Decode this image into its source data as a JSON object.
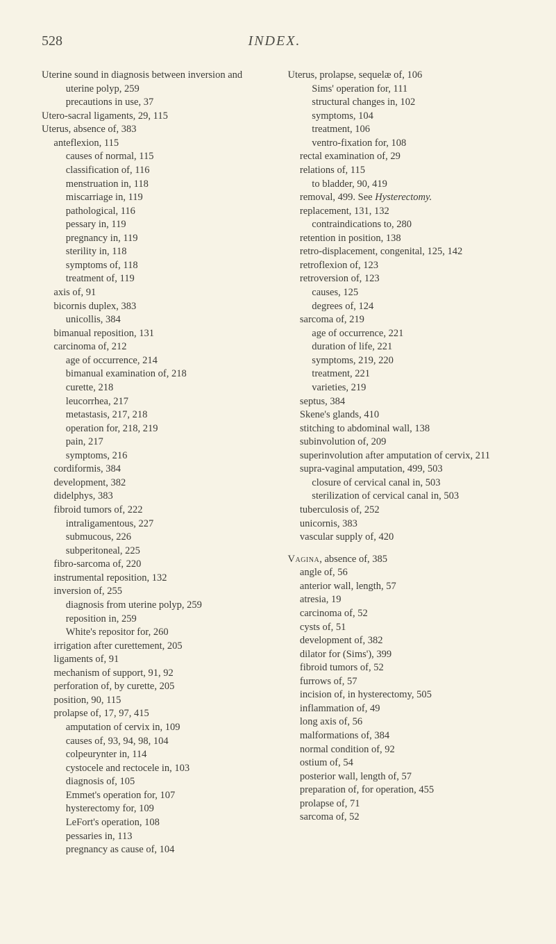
{
  "header": {
    "page_number": "528",
    "title": "INDEX."
  },
  "left_column": [
    {
      "d": 0,
      "t": "Uterine sound in diagnosis between inversion and uterine polyp, 259"
    },
    {
      "d": 2,
      "t": "precautions in use, 37"
    },
    {
      "d": 0,
      "t": "Utero-sacral ligaments, 29, 115"
    },
    {
      "d": 0,
      "t": "Uterus, absence of, 383"
    },
    {
      "d": 1,
      "t": "anteflexion, 115"
    },
    {
      "d": 2,
      "t": "causes of normal, 115"
    },
    {
      "d": 2,
      "t": "classification of, 116"
    },
    {
      "d": 2,
      "t": "menstruation in, 118"
    },
    {
      "d": 2,
      "t": "miscarriage in, 119"
    },
    {
      "d": 2,
      "t": "pathological, 116"
    },
    {
      "d": 2,
      "t": "pessary in, 119"
    },
    {
      "d": 2,
      "t": "pregnancy in, 119"
    },
    {
      "d": 2,
      "t": "sterility in, 118"
    },
    {
      "d": 2,
      "t": "symptoms of, 118"
    },
    {
      "d": 2,
      "t": "treatment of, 119"
    },
    {
      "d": 1,
      "t": "axis of, 91"
    },
    {
      "d": 1,
      "t": "bicornis duplex, 383"
    },
    {
      "d": 2,
      "t": "unicollis, 384"
    },
    {
      "d": 1,
      "t": "bimanual reposition, 131"
    },
    {
      "d": 1,
      "t": "carcinoma of, 212"
    },
    {
      "d": 2,
      "t": "age of occurrence, 214"
    },
    {
      "d": 2,
      "t": "bimanual examination of, 218"
    },
    {
      "d": 2,
      "t": "curette, 218"
    },
    {
      "d": 2,
      "t": "leucorrhea, 217"
    },
    {
      "d": 2,
      "t": "metastasis, 217, 218"
    },
    {
      "d": 2,
      "t": "operation for, 218, 219"
    },
    {
      "d": 2,
      "t": "pain, 217"
    },
    {
      "d": 2,
      "t": "symptoms, 216"
    },
    {
      "d": 1,
      "t": "cordiformis, 384"
    },
    {
      "d": 1,
      "t": "development, 382"
    },
    {
      "d": 1,
      "t": "didelphys, 383"
    },
    {
      "d": 1,
      "t": "fibroid tumors of, 222"
    },
    {
      "d": 2,
      "t": "intraligamentous, 227"
    },
    {
      "d": 2,
      "t": "submucous, 226"
    },
    {
      "d": 2,
      "t": "subperitoneal, 225"
    },
    {
      "d": 1,
      "t": "fibro-sarcoma of, 220"
    },
    {
      "d": 1,
      "t": "instrumental reposition, 132"
    },
    {
      "d": 1,
      "t": "inversion of, 255"
    },
    {
      "d": 2,
      "t": "diagnosis from uterine polyp, 259"
    },
    {
      "d": 2,
      "t": "reposition in, 259"
    },
    {
      "d": 2,
      "t": "White's repositor for, 260"
    },
    {
      "d": 1,
      "t": "irrigation after curettement, 205"
    },
    {
      "d": 1,
      "t": "ligaments of, 91"
    },
    {
      "d": 1,
      "t": "mechanism of support, 91, 92"
    },
    {
      "d": 1,
      "t": "perforation of, by curette, 205"
    },
    {
      "d": 1,
      "t": "position, 90, 115"
    },
    {
      "d": 1,
      "t": "prolapse of, 17, 97, 415"
    },
    {
      "d": 2,
      "t": "amputation of cervix in, 109"
    },
    {
      "d": 2,
      "t": "causes of, 93, 94, 98, 104"
    },
    {
      "d": 2,
      "t": "colpeurynter in, 114"
    },
    {
      "d": 2,
      "t": "cystocele and rectocele in, 103"
    },
    {
      "d": 2,
      "t": "diagnosis of, 105"
    },
    {
      "d": 2,
      "t": "Emmet's operation for, 107"
    },
    {
      "d": 2,
      "t": "hysterectomy for, 109"
    },
    {
      "d": 2,
      "t": "LeFort's operation, 108"
    },
    {
      "d": 2,
      "t": "pessaries in, 113"
    },
    {
      "d": 2,
      "t": "pregnancy as cause of, 104"
    }
  ],
  "right_column": [
    {
      "d": 0,
      "t": "Uterus, prolapse, sequelæ of, 106"
    },
    {
      "d": 2,
      "t": "Sims' operation for, 111"
    },
    {
      "d": 2,
      "t": "structural changes in, 102"
    },
    {
      "d": 2,
      "t": "symptoms, 104"
    },
    {
      "d": 2,
      "t": "treatment, 106"
    },
    {
      "d": 2,
      "t": "ventro-fixation for, 108"
    },
    {
      "d": 1,
      "t": "rectal examination of, 29"
    },
    {
      "d": 1,
      "t": "relations of, 115"
    },
    {
      "d": 2,
      "t": "to bladder, 90, 419"
    },
    {
      "d": 1,
      "t": "removal, 499.  See ",
      "em": "Hysterectomy."
    },
    {
      "d": 1,
      "t": "replacement, 131, 132"
    },
    {
      "d": 2,
      "t": "contraindications to, 280"
    },
    {
      "d": 1,
      "t": "retention in position, 138"
    },
    {
      "d": 1,
      "t": "retro-displacement, congenital, 125, 142"
    },
    {
      "d": 1,
      "t": "retroflexion of, 123"
    },
    {
      "d": 1,
      "t": "retroversion of, 123"
    },
    {
      "d": 2,
      "t": "causes, 125"
    },
    {
      "d": 2,
      "t": "degrees of, 124"
    },
    {
      "d": 1,
      "t": "sarcoma of, 219"
    },
    {
      "d": 2,
      "t": "age of occurrence, 221"
    },
    {
      "d": 2,
      "t": "duration of life, 221"
    },
    {
      "d": 2,
      "t": "symptoms, 219, 220"
    },
    {
      "d": 2,
      "t": "treatment, 221"
    },
    {
      "d": 2,
      "t": "varieties, 219"
    },
    {
      "d": 1,
      "t": "septus, 384"
    },
    {
      "d": 1,
      "t": "Skene's glands, 410"
    },
    {
      "d": 1,
      "t": "stitching to abdominal wall, 138"
    },
    {
      "d": 1,
      "t": "subinvolution of, 209"
    },
    {
      "d": 1,
      "t": "superinvolution after amputation of cervix, 211"
    },
    {
      "d": 1,
      "t": "supra-vaginal amputation, 499, 503"
    },
    {
      "d": 2,
      "t": "closure of cervical canal in, 503"
    },
    {
      "d": 2,
      "t": "sterilization of cervical canal in, 503"
    },
    {
      "d": 1,
      "t": "tuberculosis of, 252"
    },
    {
      "d": 1,
      "t": "unicornis, 383"
    },
    {
      "d": 1,
      "t": "vascular supply of, 420"
    },
    {
      "gap": true
    },
    {
      "d": 0,
      "sc": "Vagina",
      "t": ", absence of, 385"
    },
    {
      "d": 1,
      "t": "angle of, 56"
    },
    {
      "d": 1,
      "t": "anterior wall, length, 57"
    },
    {
      "d": 1,
      "t": "atresia, 19"
    },
    {
      "d": 1,
      "t": "carcinoma of, 52"
    },
    {
      "d": 1,
      "t": "cysts of, 51"
    },
    {
      "d": 1,
      "t": "development of, 382"
    },
    {
      "d": 1,
      "t": "dilator for (Sims'), 399"
    },
    {
      "d": 1,
      "t": "fibroid tumors of, 52"
    },
    {
      "d": 1,
      "t": "furrows of, 57"
    },
    {
      "d": 1,
      "t": "incision of, in hysterectomy, 505"
    },
    {
      "d": 1,
      "t": "inflammation of, 49"
    },
    {
      "d": 1,
      "t": "long axis of, 56"
    },
    {
      "d": 1,
      "t": "malformations of, 384"
    },
    {
      "d": 1,
      "t": "normal condition of, 92"
    },
    {
      "d": 1,
      "t": "ostium of, 54"
    },
    {
      "d": 1,
      "t": "posterior wall, length of, 57"
    },
    {
      "d": 1,
      "t": "preparation of, for operation, 455"
    },
    {
      "d": 1,
      "t": "prolapse of, 71"
    },
    {
      "d": 1,
      "t": "sarcoma of, 52"
    }
  ]
}
